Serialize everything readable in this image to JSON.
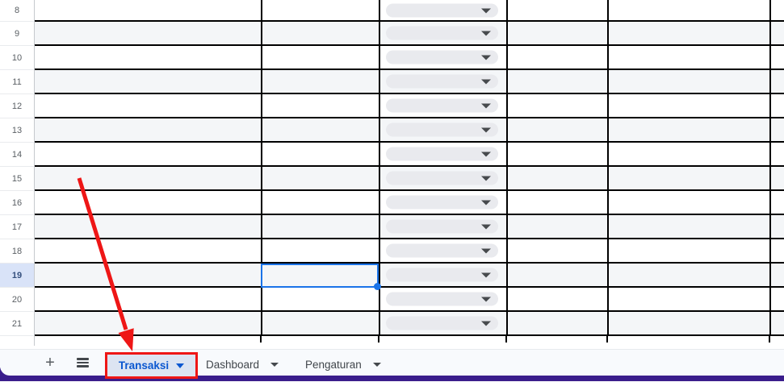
{
  "theme": {
    "accent_blue": "#1a73e8",
    "active_tab_text": "#0b57d0",
    "active_tab_bg": "#dce4f2",
    "annotation_red": "#ee1616",
    "window_edge_purple": "#3a1d8c",
    "band_grey": "#f4f6f8",
    "grid_line": "#000000",
    "pill_bg": "#e9eaee",
    "bar_bg": "#f8fafd",
    "selected_row_header_bg": "#d9e3f8"
  },
  "grid": {
    "row_numbers": [
      "8",
      "9",
      "10",
      "11",
      "12",
      "13",
      "14",
      "15",
      "16",
      "17",
      "18",
      "19",
      "20",
      "21"
    ],
    "selected_row_number": "19",
    "dropdown_chip_icon": "dropdown-arrow-icon"
  },
  "annotations": {
    "highlight_target": "Transaksi tab",
    "arrow_color": "#ee1616",
    "box_color": "#ee1616"
  },
  "sheet_tabs": {
    "add_button_label": "+",
    "all_sheets_icon": "hamburger-icon",
    "tabs": [
      {
        "label": "Transaksi",
        "active": true,
        "annotated": true
      },
      {
        "label": "Dashboard",
        "active": false,
        "annotated": false
      },
      {
        "label": "Pengaturan",
        "active": false,
        "annotated": false
      }
    ]
  }
}
